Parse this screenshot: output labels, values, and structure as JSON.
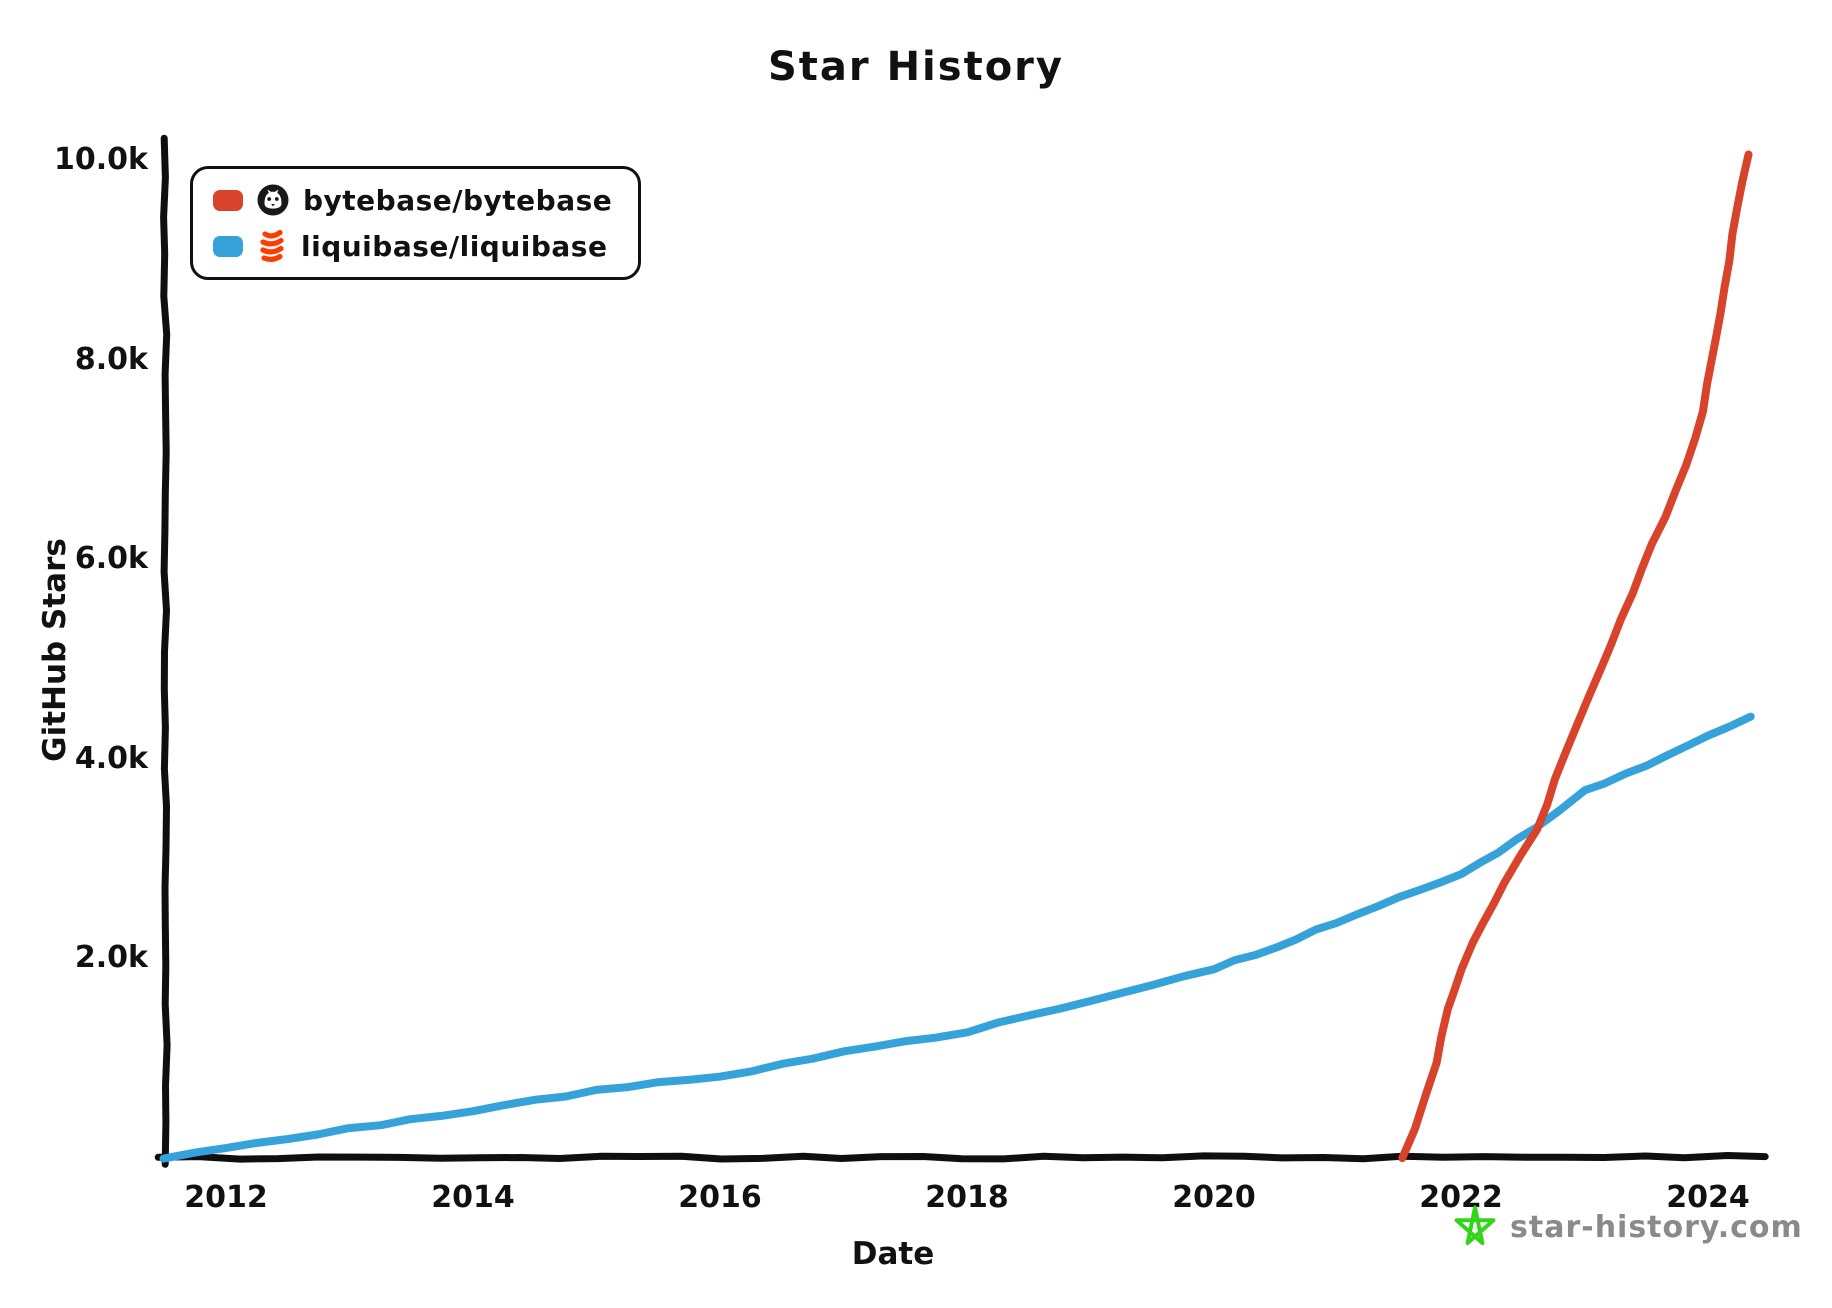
{
  "title": "Star History",
  "xlabel": "Date",
  "ylabel": "GitHub Stars",
  "watermark": {
    "text": "star-history.com",
    "icon": "doodle-star",
    "icon_color": "#35d41c",
    "text_color": "#8a8a8a"
  },
  "legend": {
    "items": [
      {
        "label": "bytebase/bytebase",
        "color": "#d8432b",
        "avatar": "github-octocat-icon"
      },
      {
        "label": "liquibase/liquibase",
        "color": "#35a2da",
        "avatar": "liquibase-coil-icon"
      }
    ]
  },
  "chart_data": {
    "type": "line",
    "title": "Star History",
    "xlabel": "Date",
    "ylabel": "GitHub Stars",
    "style": "xkcd-hand-drawn",
    "grid": false,
    "legend_position": "top-left",
    "xlim": [
      2011.5,
      2024.5
    ],
    "ylim": [
      0,
      10400
    ],
    "x_ticks": [
      2012,
      2014,
      2016,
      2018,
      2020,
      2022,
      2024
    ],
    "y_ticks": [
      "10.0k",
      "8.0k",
      "6.0k",
      "4.0k",
      "2.0k"
    ],
    "axis_color": "#0f0f0f",
    "series": [
      {
        "name": "bytebase/bytebase",
        "color": "#d8432b",
        "points": [
          [
            2021.53,
            0
          ],
          [
            2021.62,
            300
          ],
          [
            2021.72,
            650
          ],
          [
            2021.8,
            950
          ],
          [
            2021.9,
            1500
          ],
          [
            2022.0,
            1900
          ],
          [
            2022.1,
            2150
          ],
          [
            2022.35,
            2750
          ],
          [
            2022.61,
            3300
          ],
          [
            2022.85,
            4050
          ],
          [
            2023.05,
            4650
          ],
          [
            2023.3,
            5400
          ],
          [
            2023.55,
            6150
          ],
          [
            2023.75,
            6700
          ],
          [
            2023.9,
            7200
          ],
          [
            2024.0,
            7750
          ],
          [
            2024.1,
            8450
          ],
          [
            2024.2,
            9250
          ],
          [
            2024.32,
            10050
          ]
        ]
      },
      {
        "name": "liquibase/liquibase",
        "color": "#35a2da",
        "points": [
          [
            2011.5,
            0
          ],
          [
            2012.0,
            100
          ],
          [
            2012.5,
            190
          ],
          [
            2013.0,
            290
          ],
          [
            2013.5,
            390
          ],
          [
            2014.0,
            470
          ],
          [
            2014.5,
            580
          ],
          [
            2015.0,
            670
          ],
          [
            2015.5,
            750
          ],
          [
            2016.0,
            810
          ],
          [
            2016.5,
            940
          ],
          [
            2017.0,
            1060
          ],
          [
            2017.5,
            1160
          ],
          [
            2018.0,
            1270
          ],
          [
            2018.5,
            1430
          ],
          [
            2019.0,
            1580
          ],
          [
            2019.5,
            1740
          ],
          [
            2020.0,
            1900
          ],
          [
            2020.5,
            2120
          ],
          [
            2021.0,
            2360
          ],
          [
            2021.5,
            2610
          ],
          [
            2022.0,
            2840
          ],
          [
            2022.3,
            3060
          ],
          [
            2022.61,
            3300
          ],
          [
            2023.0,
            3680
          ],
          [
            2023.5,
            3920
          ],
          [
            2024.0,
            4230
          ],
          [
            2024.34,
            4420
          ]
        ]
      }
    ]
  }
}
